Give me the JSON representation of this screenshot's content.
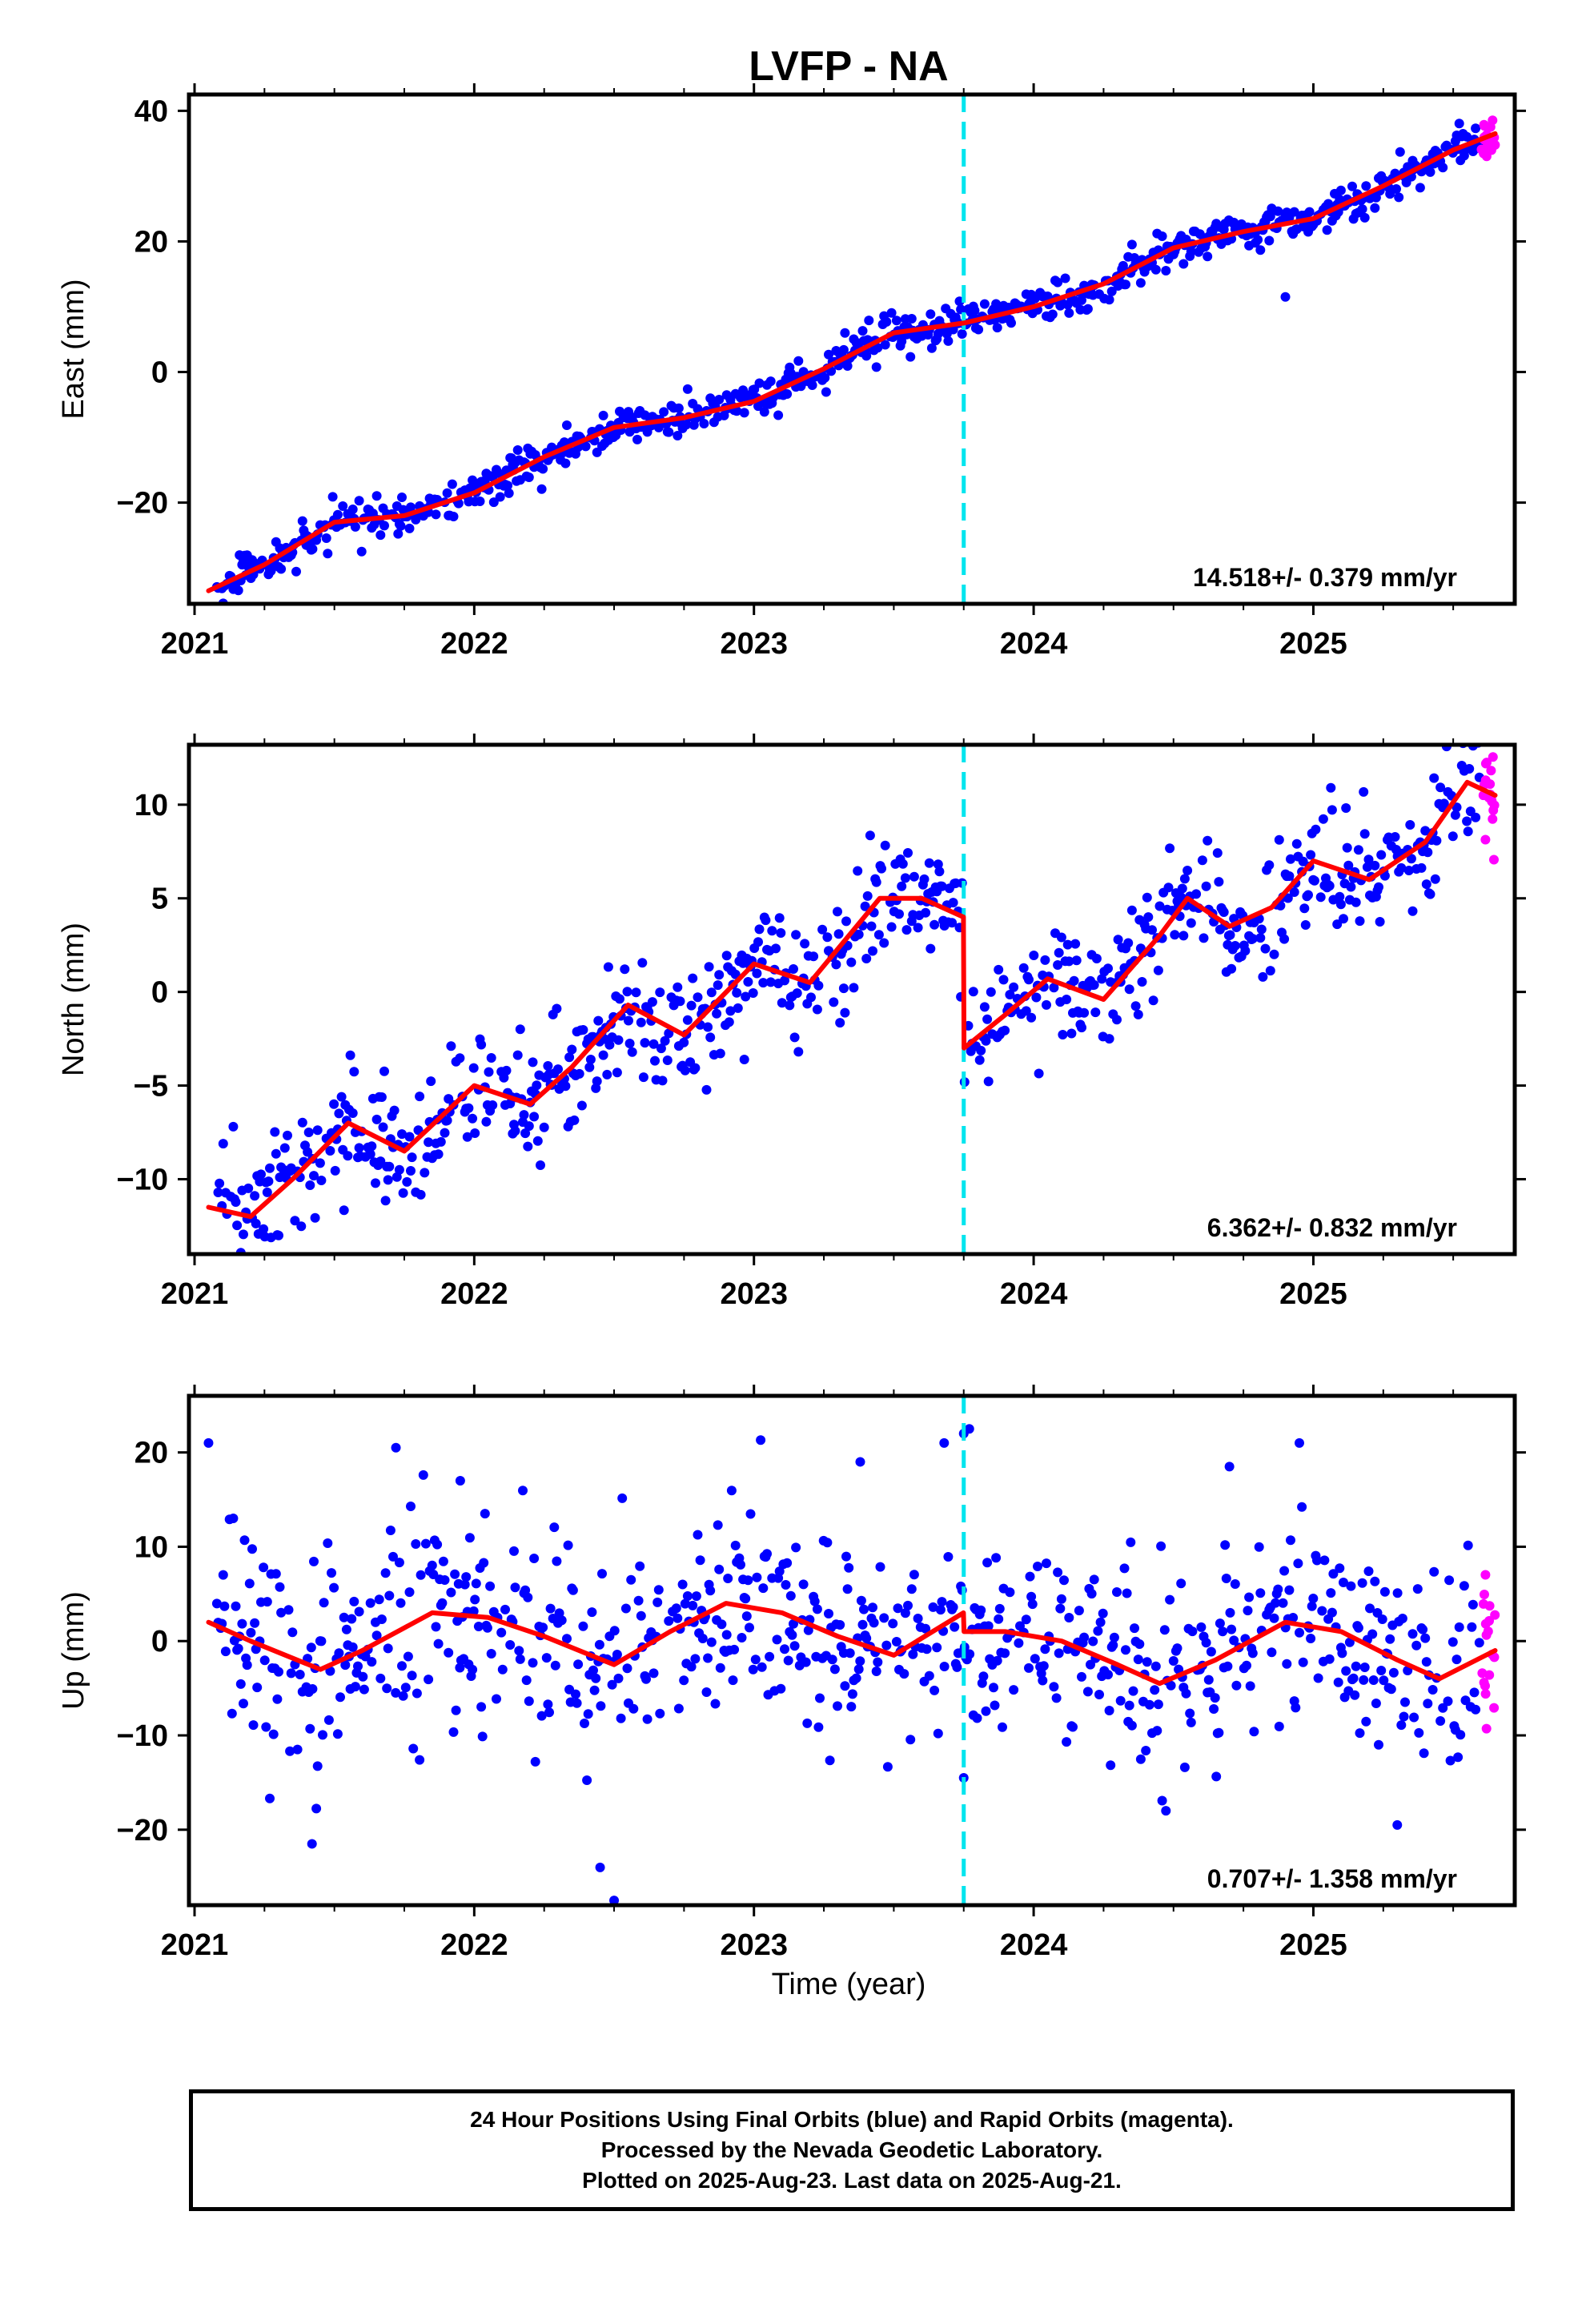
{
  "title": "LVFP - NA",
  "xlabel": "Time (year)",
  "xticks": [
    "2021",
    "2022",
    "2023",
    "2024",
    "2025"
  ],
  "colors": {
    "final": "#0000ff",
    "rapid": "#ff00ff",
    "model": "#ff0000",
    "event": "#00e5ee"
  },
  "caption": {
    "line1": "24 Hour Positions Using Final Orbits (blue) and Rapid Orbits (magenta).",
    "line2": "Processed by the Nevada Geodetic Laboratory.",
    "line3": "Plotted on 2025-Aug-23. Last data on 2025-Aug-21."
  },
  "chart_data": [
    {
      "type": "scatter",
      "ylabel": "East (mm)",
      "velocity_label": "14.518+/- 0.379 mm/yr",
      "xlim": [
        2020.98,
        2025.72
      ],
      "ylim": [
        -35.5,
        42.5
      ],
      "yticks": [
        -20,
        0,
        20,
        40
      ],
      "event_line_x": 2023.75,
      "rapid_x": [
        2025.6,
        2025.65
      ],
      "model": {
        "x": [
          2021.05,
          2021.25,
          2021.5,
          2021.75,
          2022.0,
          2022.25,
          2022.5,
          2022.75,
          2023.0,
          2023.25,
          2023.5,
          2023.75,
          2024.0,
          2024.25,
          2024.5,
          2024.75,
          2025.0,
          2025.25,
          2025.5,
          2025.65
        ],
        "y": [
          -33.5,
          -29.5,
          -23.0,
          -22.0,
          -18.5,
          -13.0,
          -8.5,
          -7.0,
          -4.5,
          0.5,
          6.0,
          7.5,
          10.0,
          13.5,
          19.0,
          21.5,
          23.5,
          28.5,
          34.0,
          36.5
        ]
      },
      "scatter_sd": 1.4,
      "outliers": [
        {
          "x": 2024.9,
          "y": 11.5
        }
      ]
    },
    {
      "type": "scatter",
      "ylabel": "North (mm)",
      "velocity_label": "6.362+/- 0.832 mm/yr",
      "xlim": [
        2020.98,
        2025.72
      ],
      "ylim": [
        -14.0,
        13.2
      ],
      "yticks": [
        -10,
        -5,
        0,
        5,
        10
      ],
      "event_line_x": 2023.75,
      "rapid_x": [
        2025.6,
        2025.65
      ],
      "model": {
        "x": [
          2021.05,
          2021.2,
          2021.35,
          2021.55,
          2021.75,
          2022.0,
          2022.2,
          2022.35,
          2022.55,
          2022.75,
          2023.0,
          2023.2,
          2023.45,
          2023.6,
          2023.749,
          2023.751,
          2023.9,
          2024.05,
          2024.25,
          2024.45,
          2024.55,
          2024.7,
          2024.85,
          2025.0,
          2025.2,
          2025.4,
          2025.55,
          2025.65
        ],
        "y": [
          -11.5,
          -12.0,
          -10.0,
          -7.0,
          -8.5,
          -5.0,
          -6.0,
          -4.0,
          -0.7,
          -2.3,
          1.5,
          0.5,
          5.0,
          5.0,
          4.0,
          -3.0,
          -1.2,
          0.7,
          -0.4,
          3.0,
          5.0,
          3.5,
          4.5,
          7.0,
          6.0,
          8.0,
          11.2,
          10.5
        ]
      },
      "scatter_sd": 1.6
    },
    {
      "type": "scatter",
      "ylabel": "Up (mm)",
      "velocity_label": "0.707+/- 1.358 mm/yr",
      "xlim": [
        2020.98,
        2025.72
      ],
      "ylim": [
        -28.0,
        26.0
      ],
      "yticks": [
        -20,
        -10,
        0,
        10,
        20
      ],
      "event_line_x": 2023.75,
      "rapid_x": [
        2025.6,
        2025.65
      ],
      "model": {
        "x": [
          2021.05,
          2021.2,
          2021.45,
          2021.6,
          2021.85,
          2022.05,
          2022.25,
          2022.5,
          2022.7,
          2022.9,
          2023.1,
          2023.3,
          2023.5,
          2023.749,
          2023.751,
          2023.9,
          2024.1,
          2024.3,
          2024.45,
          2024.65,
          2024.9,
          2025.1,
          2025.3,
          2025.45,
          2025.65
        ],
        "y": [
          2.0,
          0.0,
          -3.0,
          -1.0,
          3.0,
          2.5,
          0.5,
          -2.5,
          1.0,
          4.0,
          3.0,
          0.5,
          -1.5,
          3.0,
          1.0,
          1.0,
          0.0,
          -2.5,
          -4.5,
          -2.0,
          2.0,
          1.0,
          -2.0,
          -4.0,
          -1.0
        ]
      },
      "scatter_sd": 5.5,
      "outliers": [
        {
          "x": 2021.05,
          "y": 21.0
        },
        {
          "x": 2021.72,
          "y": 20.5
        },
        {
          "x": 2021.95,
          "y": 17.0
        },
        {
          "x": 2021.42,
          "y": -21.5
        },
        {
          "x": 2022.45,
          "y": -24.0
        },
        {
          "x": 2022.5,
          "y": -27.5
        },
        {
          "x": 2023.68,
          "y": 21.0
        },
        {
          "x": 2023.75,
          "y": 22.0
        },
        {
          "x": 2023.77,
          "y": 22.5
        },
        {
          "x": 2023.75,
          "y": -14.5
        },
        {
          "x": 2024.7,
          "y": 18.5
        },
        {
          "x": 2024.95,
          "y": 21.0
        },
        {
          "x": 2023.38,
          "y": 19.0
        },
        {
          "x": 2025.3,
          "y": -19.5
        }
      ]
    }
  ]
}
